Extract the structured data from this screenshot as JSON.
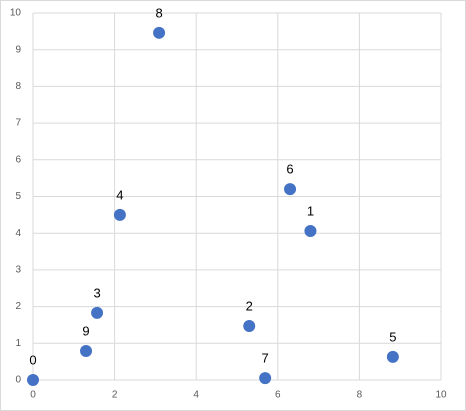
{
  "chart_data": {
    "type": "scatter",
    "x": [
      0,
      6.8,
      5.3,
      1.57,
      2.13,
      8.82,
      6.3,
      5.69,
      3.09,
      1.3
    ],
    "values": [
      0,
      4.06,
      1.47,
      1.83,
      4.5,
      0.63,
      5.2,
      0.05,
      9.46,
      0.79
    ],
    "point_labels": [
      0,
      1,
      2,
      3,
      4,
      5,
      6,
      7,
      8,
      9
    ],
    "color": "#4472c4",
    "xlim": [
      0,
      10
    ],
    "xticks": [
      0,
      2,
      4,
      6,
      8,
      10
    ],
    "ylim": [
      0,
      10
    ],
    "yticks": [
      0,
      1,
      2,
      3,
      4,
      5,
      6,
      7,
      8,
      9,
      10
    ],
    "grid": true
  }
}
